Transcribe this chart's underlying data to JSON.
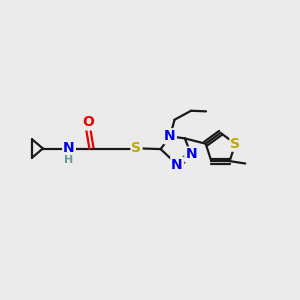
{
  "background_color": "#ebebeb",
  "bond_color": "#1a1a1a",
  "N_color": "#0000ee",
  "O_color": "#ee0000",
  "S_color": "#bbaa00",
  "H_color": "#669999",
  "figsize": [
    3.0,
    3.0
  ],
  "dpi": 100,
  "xlim": [
    0,
    10
  ],
  "ylim": [
    0,
    10
  ]
}
